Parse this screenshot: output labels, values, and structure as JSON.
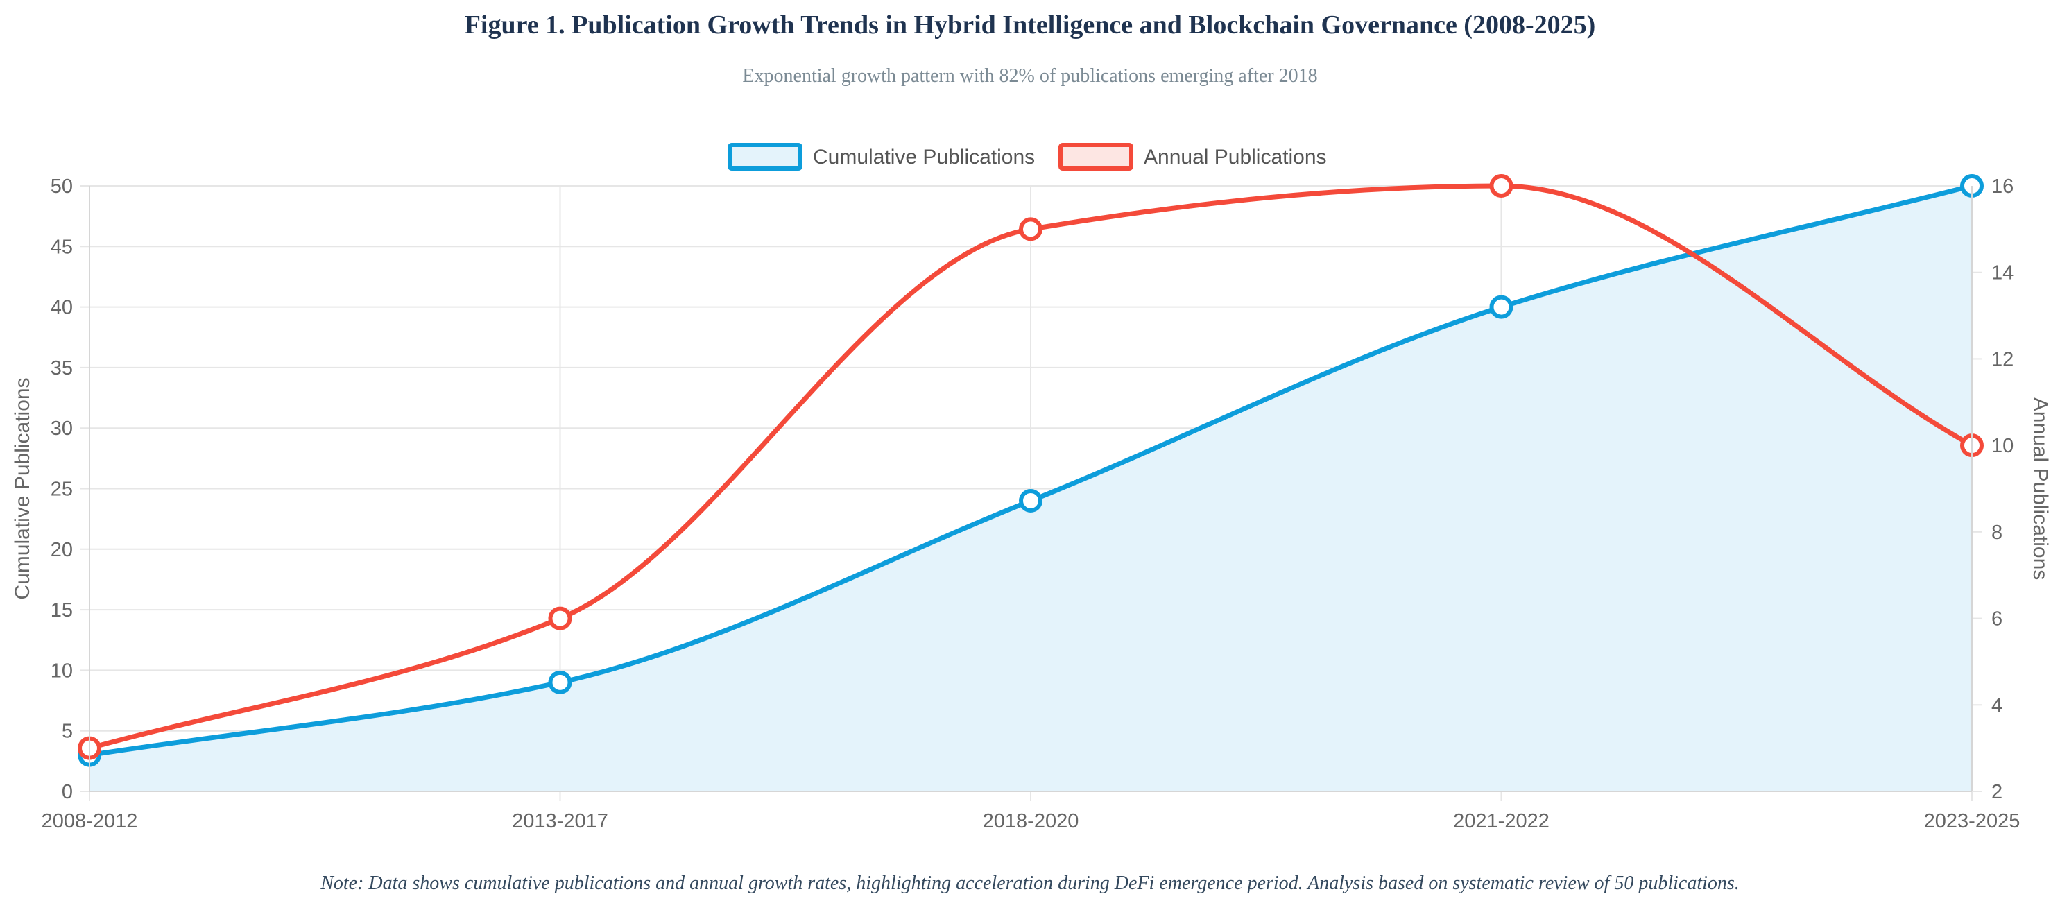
{
  "chart_data": {
    "type": "line",
    "title": "Figure 1. Publication Growth Trends in Hybrid Intelligence and Blockchain Governance (2008-2025)",
    "subtitle": "Exponential growth pattern with 82% of publications emerging after 2018",
    "note": "Note: Data shows cumulative publications and annual growth rates, highlighting acceleration during DeFi emergence period. Analysis based on systematic review of 50 publications.",
    "categories": [
      "2008-2012",
      "2013-2017",
      "2018-2020",
      "2021-2022",
      "2023-2025"
    ],
    "series": [
      {
        "name": "Cumulative Publications",
        "axis": "left",
        "values": [
          3,
          9,
          24,
          40,
          50
        ],
        "color": "#0d9ddb",
        "fill": "#e4f3fb",
        "filled": true
      },
      {
        "name": "Annual Publications",
        "axis": "right",
        "values": [
          3,
          6,
          15,
          16,
          10
        ],
        "color": "#f44a3a",
        "fill": "#fde6e3",
        "filled": false
      }
    ],
    "y_left": {
      "label": "Cumulative Publications",
      "ylim": [
        0,
        50
      ],
      "ticks": [
        0,
        5,
        10,
        15,
        20,
        25,
        30,
        35,
        40,
        45,
        50
      ]
    },
    "y_right": {
      "label": "Annual Publications",
      "ylim": [
        2,
        16
      ],
      "ticks": [
        2,
        4,
        6,
        8,
        10,
        12,
        14,
        16
      ]
    },
    "legend_position": "top-center",
    "grid": true
  }
}
